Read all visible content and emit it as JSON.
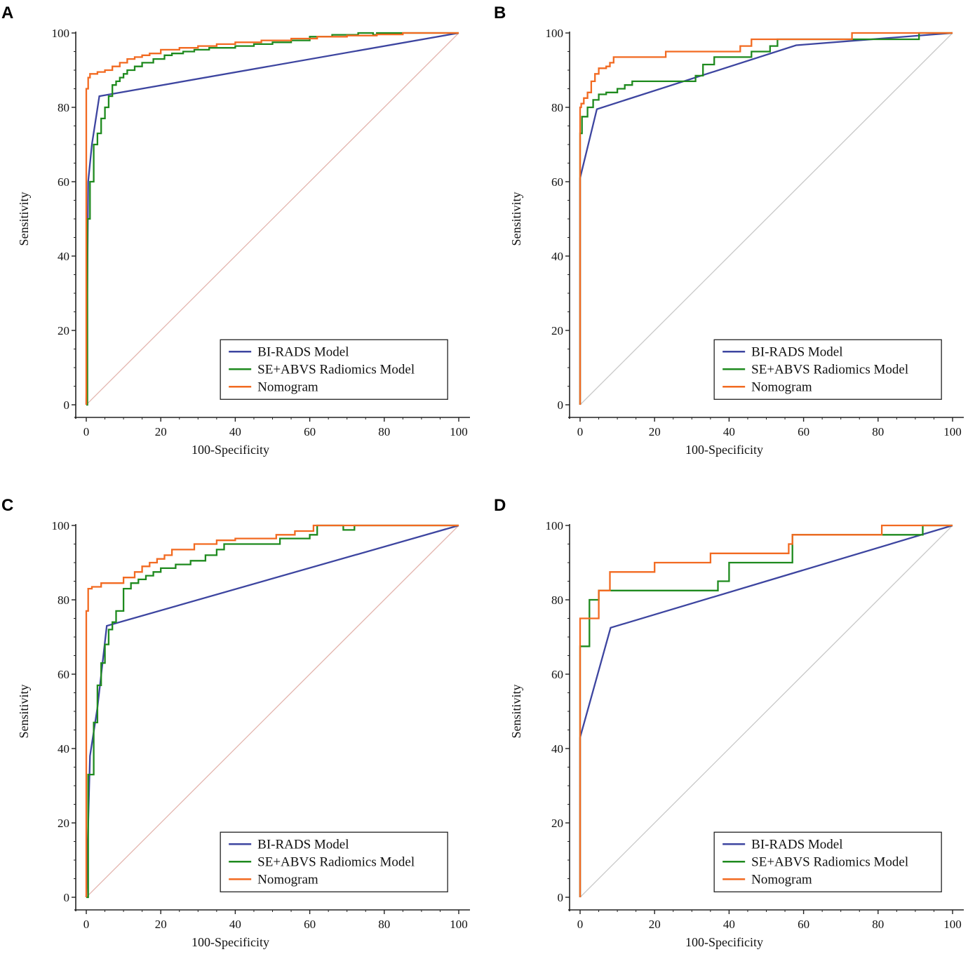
{
  "colors": {
    "bi_rads": "#3d45a0",
    "radiomics": "#1e8a1e",
    "nomogram": "#f26a21",
    "diag_ab": "#e3b4ad",
    "diag_bd": "#c8c8c8",
    "axis": "#222222"
  },
  "chart_data": [
    {
      "panel": "A",
      "type": "line",
      "xlabel": "100-Specificity",
      "ylabel": "Sensitivity",
      "xlim": [
        0,
        100
      ],
      "ylim": [
        0,
        100
      ],
      "xticks": [
        "0",
        "20",
        "40",
        "60",
        "80",
        "100"
      ],
      "yticks": [
        "0",
        "20",
        "40",
        "60",
        "80",
        "100"
      ],
      "legend": [
        "BI-RADS Model",
        "SE+ABVS Radiomics Model",
        "Nomogram"
      ],
      "series": [
        {
          "name": "BI-RADS Model",
          "x": [
            0,
            0.5,
            1.5,
            3.5,
            100
          ],
          "y": [
            0,
            60,
            70,
            83,
            100
          ]
        },
        {
          "name": "SE+ABVS Radiomics Model",
          "x": [
            0,
            0.3,
            0.3,
            1,
            1,
            2,
            2,
            3,
            3,
            4,
            4,
            5,
            5,
            6,
            6,
            7,
            7,
            8,
            8,
            9,
            9,
            10,
            10,
            11,
            11,
            13,
            13,
            15,
            15,
            18,
            18,
            21,
            21,
            23,
            23,
            26,
            26,
            29,
            29,
            33,
            33,
            40,
            40,
            45,
            45,
            50,
            50,
            55,
            55,
            60,
            60,
            66,
            66,
            73,
            73,
            77,
            77,
            78,
            78,
            100
          ],
          "y": [
            0,
            0,
            50,
            50,
            60,
            60,
            70,
            70,
            73,
            73,
            77,
            77,
            80,
            80,
            83,
            83,
            86,
            86,
            87,
            87,
            88,
            88,
            89,
            89,
            90,
            90,
            91,
            91,
            92,
            92,
            93,
            93,
            94,
            94,
            94.5,
            94.5,
            95,
            95,
            95.5,
            95.5,
            96,
            96,
            96.5,
            96.5,
            97,
            97,
            97.5,
            97.5,
            98,
            98,
            99,
            99,
            99.5,
            99.5,
            100,
            100,
            99.5,
            99.5,
            100,
            100
          ]
        },
        {
          "name": "Nomogram",
          "x": [
            0,
            0,
            0.5,
            0.5,
            1,
            1,
            3,
            3,
            5,
            5,
            7,
            7,
            9,
            9,
            11,
            11,
            13,
            13,
            15,
            15,
            17,
            17,
            20,
            20,
            25,
            25,
            30,
            30,
            35,
            35,
            40,
            40,
            47,
            47,
            55,
            55,
            62,
            62,
            70,
            70,
            78,
            78,
            85,
            85,
            100
          ],
          "y": [
            0,
            85,
            85,
            88,
            88,
            89,
            89,
            89.5,
            89.5,
            90,
            90,
            91,
            91,
            92,
            92,
            93,
            93,
            93.5,
            93.5,
            94,
            94,
            94.5,
            94.5,
            95.5,
            95.5,
            96,
            96,
            96.5,
            96.5,
            97,
            97,
            97.5,
            97.5,
            98,
            98,
            98.5,
            98.5,
            99,
            99,
            99.3,
            99.3,
            99.6,
            99.6,
            100,
            100
          ]
        }
      ]
    },
    {
      "panel": "B",
      "type": "line",
      "xlabel": "100-Specificity",
      "ylabel": "Sensitivity",
      "xlim": [
        0,
        100
      ],
      "ylim": [
        0,
        100
      ],
      "xticks": [
        "0",
        "20",
        "40",
        "60",
        "80",
        "100"
      ],
      "yticks": [
        "0",
        "20",
        "40",
        "60",
        "80",
        "100"
      ],
      "legend": [
        "BI-RADS Model",
        "SE+ABVS Radiomics Model",
        "Nomogram"
      ],
      "series": [
        {
          "name": "BI-RADS Model",
          "x": [
            0,
            0,
            4.5,
            58,
            100
          ],
          "y": [
            0,
            61,
            79.5,
            96.7,
            100
          ]
        },
        {
          "name": "SE+ABVS Radiomics Model",
          "x": [
            0,
            0,
            0.5,
            0.5,
            2,
            2,
            3.5,
            3.5,
            5,
            5,
            7,
            7,
            10,
            10,
            12,
            12,
            14,
            14,
            31,
            31,
            33,
            33,
            36,
            36,
            46,
            46,
            51,
            51,
            53,
            53,
            91,
            91,
            100
          ],
          "y": [
            0,
            73,
            73,
            77.5,
            77.5,
            80,
            80,
            82,
            82,
            83.5,
            83.5,
            84,
            84,
            85,
            85,
            86,
            86,
            87,
            87,
            88.5,
            88.5,
            91.5,
            91.5,
            93.5,
            93.5,
            95,
            95,
            96.5,
            96.5,
            98.3,
            98.3,
            100,
            100
          ]
        },
        {
          "name": "Nomogram",
          "x": [
            0,
            0,
            0.3,
            0.3,
            1,
            1,
            2,
            2,
            3,
            3,
            4,
            4,
            5,
            5,
            7,
            7,
            8,
            8,
            9,
            9,
            13,
            13,
            23,
            23,
            43,
            43,
            46,
            46,
            48,
            48,
            73,
            73,
            100
          ],
          "y": [
            0,
            80,
            80,
            81,
            81,
            82.5,
            82.5,
            84,
            84,
            87,
            87,
            89,
            89,
            90.5,
            90.5,
            91,
            91,
            92,
            92,
            93.5,
            93.5,
            93.5,
            93.5,
            95,
            95,
            96.5,
            96.5,
            98.3,
            98.3,
            98.3,
            98.3,
            100,
            100
          ]
        }
      ]
    },
    {
      "panel": "C",
      "type": "line",
      "xlabel": "100-Specificity",
      "ylabel": "Sensitivity",
      "xlim": [
        0,
        100
      ],
      "ylim": [
        0,
        100
      ],
      "xticks": [
        "0",
        "20",
        "40",
        "60",
        "80",
        "100"
      ],
      "yticks": [
        "0",
        "20",
        "40",
        "60",
        "80",
        "100"
      ],
      "legend": [
        "BI-RADS Model",
        "SE+ABVS Radiomics Model",
        "Nomogram"
      ],
      "series": [
        {
          "name": "BI-RADS Model",
          "x": [
            0,
            1,
            3,
            5.5,
            100
          ],
          "y": [
            0,
            38,
            51,
            73,
            100
          ]
        },
        {
          "name": "SE+ABVS Radiomics Model",
          "x": [
            0,
            0.5,
            0.5,
            2,
            2,
            3,
            3,
            4,
            4,
            5,
            5,
            6,
            6,
            7,
            7,
            8,
            8,
            10,
            10,
            12,
            12,
            14,
            14,
            16,
            16,
            18,
            18,
            20,
            20,
            24,
            24,
            28,
            28,
            32,
            32,
            35,
            35,
            37,
            37,
            52,
            52,
            60,
            60,
            62,
            62,
            69,
            69,
            72,
            72,
            100
          ],
          "y": [
            0,
            0,
            33,
            33,
            47,
            47,
            57,
            57,
            63,
            63,
            68,
            68,
            72,
            72,
            74,
            74,
            77,
            77,
            83,
            83,
            84.5,
            84.5,
            85.5,
            85.5,
            86.5,
            86.5,
            87.5,
            87.5,
            88.5,
            88.5,
            89.5,
            89.5,
            90.5,
            90.5,
            92,
            92,
            93.5,
            93.5,
            95,
            95,
            96.5,
            96.5,
            97.5,
            97.5,
            100,
            100,
            98.8,
            98.8,
            100,
            100
          ]
        },
        {
          "name": "Nomogram",
          "x": [
            0,
            0,
            0.5,
            0.5,
            1.5,
            1.5,
            4,
            4,
            10,
            10,
            13,
            13,
            15,
            15,
            17,
            17,
            19,
            19,
            21,
            21,
            23,
            23,
            29,
            29,
            35,
            35,
            40,
            40,
            51,
            51,
            56,
            56,
            61,
            61,
            100
          ],
          "y": [
            0,
            77,
            77,
            83,
            83,
            83.5,
            83.5,
            84.5,
            84.5,
            86,
            86,
            87.5,
            87.5,
            89,
            89,
            90,
            90,
            91,
            91,
            92,
            92,
            93.5,
            93.5,
            95,
            95,
            96,
            96,
            96.5,
            96.5,
            97.5,
            97.5,
            98.5,
            98.5,
            100,
            100
          ]
        }
      ]
    },
    {
      "panel": "D",
      "type": "line",
      "xlabel": "100-Specificity",
      "ylabel": "Sensitivity",
      "xlim": [
        0,
        100
      ],
      "ylim": [
        0,
        100
      ],
      "xticks": [
        "0",
        "20",
        "40",
        "60",
        "80",
        "100"
      ],
      "yticks": [
        "0",
        "20",
        "40",
        "60",
        "80",
        "100"
      ],
      "legend": [
        "BI-RADS Model",
        "SE+ABVS Radiomics Model",
        "Nomogram"
      ],
      "series": [
        {
          "name": "BI-RADS Model",
          "x": [
            0,
            0,
            8.2,
            100
          ],
          "y": [
            0,
            43,
            72.5,
            100
          ]
        },
        {
          "name": "SE+ABVS Radiomics Model",
          "x": [
            0,
            0,
            0.3,
            0.3,
            2.5,
            2.5,
            5,
            5,
            37,
            37,
            40,
            40,
            57,
            57,
            92,
            92,
            100
          ],
          "y": [
            0,
            67.5,
            67.5,
            67.5,
            67.5,
            80,
            80,
            82.5,
            82.5,
            85,
            85,
            90,
            90,
            97.5,
            97.5,
            100,
            100
          ]
        },
        {
          "name": "Nomogram",
          "x": [
            0,
            0,
            0.5,
            0.5,
            5,
            5,
            8,
            8,
            16,
            16,
            20,
            20,
            35,
            35,
            56,
            56,
            57,
            57,
            60,
            60,
            81,
            81,
            100
          ],
          "y": [
            0,
            75,
            75,
            75,
            75,
            82.5,
            82.5,
            87.5,
            87.5,
            87.5,
            87.5,
            90,
            90,
            92.5,
            92.5,
            95,
            95,
            97.5,
            97.5,
            97.5,
            97.5,
            100,
            100
          ]
        }
      ]
    }
  ]
}
